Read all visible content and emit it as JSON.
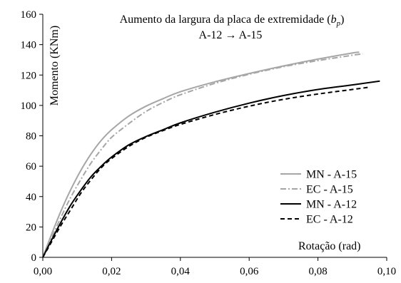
{
  "chart_data": {
    "type": "line",
    "title": "Aumento da largura da placa de extremidade (",
    "title_symbol": "b",
    "title_subscript": "p",
    "title_suffix": ")",
    "subtitle": "A-12 → A-15",
    "xlabel": "Rotação  (rad)",
    "ylabel": "Momento  (KNm)",
    "xlim": [
      0,
      0.1
    ],
    "ylim": [
      0,
      160
    ],
    "xticks": [
      0,
      0.02,
      0.04,
      0.06,
      0.08,
      0.1
    ],
    "xtick_labels": [
      "0,00",
      "0,02",
      "0,04",
      "0,06",
      "0,08",
      "0,10"
    ],
    "yticks": [
      0,
      20,
      40,
      60,
      80,
      100,
      120,
      140,
      160
    ],
    "ytick_labels": [
      "0",
      "20",
      "40",
      "60",
      "80",
      "100",
      "120",
      "140",
      "160"
    ],
    "grid": false,
    "legend_position": "right",
    "series": [
      {
        "name": "MN - A-15",
        "color": "#a6a6a6",
        "dash": "solid",
        "points": [
          [
            0,
            0
          ],
          [
            0.002,
            12
          ],
          [
            0.005,
            29
          ],
          [
            0.008,
            44
          ],
          [
            0.011,
            57
          ],
          [
            0.014,
            68
          ],
          [
            0.017,
            77
          ],
          [
            0.02,
            84
          ],
          [
            0.025,
            93
          ],
          [
            0.03,
            99.5
          ],
          [
            0.035,
            104.5
          ],
          [
            0.04,
            109
          ],
          [
            0.05,
            115.5
          ],
          [
            0.06,
            121
          ],
          [
            0.07,
            126
          ],
          [
            0.08,
            130.5
          ],
          [
            0.09,
            134.5
          ],
          [
            0.092,
            135
          ]
        ]
      },
      {
        "name": "EC - A-15",
        "color": "#a6a6a6",
        "dash": "dashdot",
        "points": [
          [
            0,
            0
          ],
          [
            0.002,
            10
          ],
          [
            0.005,
            25
          ],
          [
            0.008,
            39
          ],
          [
            0.011,
            51
          ],
          [
            0.014,
            62
          ],
          [
            0.017,
            71
          ],
          [
            0.02,
            79
          ],
          [
            0.025,
            88
          ],
          [
            0.03,
            96
          ],
          [
            0.035,
            102
          ],
          [
            0.04,
            107
          ],
          [
            0.05,
            114.5
          ],
          [
            0.06,
            120.5
          ],
          [
            0.07,
            125.5
          ],
          [
            0.08,
            129.5
          ],
          [
            0.09,
            133
          ],
          [
            0.093,
            134
          ]
        ]
      },
      {
        "name": "MN - A-12",
        "color": "#000000",
        "dash": "solid",
        "points": [
          [
            0,
            0
          ],
          [
            0.002,
            9
          ],
          [
            0.005,
            22
          ],
          [
            0.008,
            34
          ],
          [
            0.011,
            44
          ],
          [
            0.014,
            53
          ],
          [
            0.017,
            60
          ],
          [
            0.02,
            66
          ],
          [
            0.025,
            74
          ],
          [
            0.03,
            79.5
          ],
          [
            0.035,
            84
          ],
          [
            0.04,
            88.5
          ],
          [
            0.05,
            95.5
          ],
          [
            0.06,
            101.5
          ],
          [
            0.07,
            106.5
          ],
          [
            0.08,
            110.5
          ],
          [
            0.09,
            113.5
          ],
          [
            0.098,
            116
          ]
        ]
      },
      {
        "name": "EC - A-12",
        "color": "#000000",
        "dash": "dashed",
        "points": [
          [
            0,
            0
          ],
          [
            0.002,
            8
          ],
          [
            0.005,
            20
          ],
          [
            0.008,
            31
          ],
          [
            0.011,
            42
          ],
          [
            0.014,
            51
          ],
          [
            0.017,
            59
          ],
          [
            0.02,
            65
          ],
          [
            0.025,
            73
          ],
          [
            0.03,
            79
          ],
          [
            0.035,
            83.5
          ],
          [
            0.04,
            87.5
          ],
          [
            0.05,
            94
          ],
          [
            0.06,
            99.5
          ],
          [
            0.07,
            104
          ],
          [
            0.08,
            107.5
          ],
          [
            0.09,
            110.5
          ],
          [
            0.095,
            112
          ]
        ]
      }
    ]
  }
}
